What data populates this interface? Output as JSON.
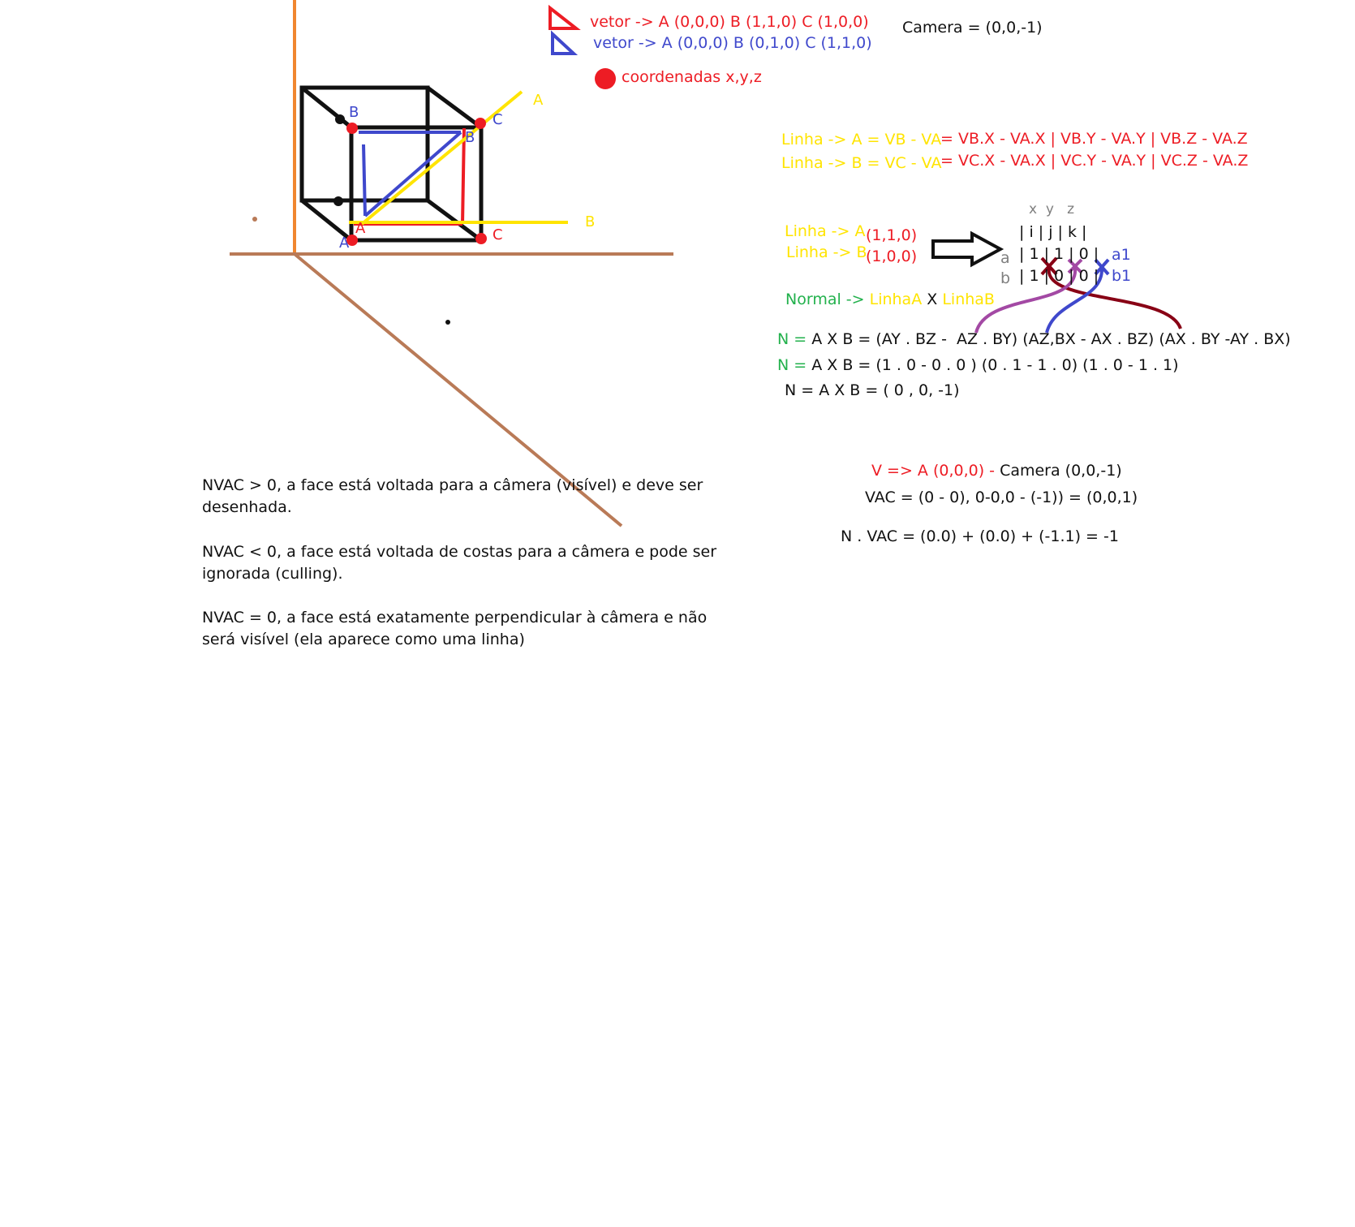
{
  "legend": {
    "red_triangle": "vetor -> A (0,0,0) B (1,1,0) C (1,0,0)",
    "blue_triangle": "vetor -> A (0,0,0) B (0,1,0) C (1,1,0)",
    "dot": "coordenadas x,y,z"
  },
  "camera": "Camera = (0,0,-1)",
  "cube_labels": {
    "blue_b": "B",
    "red_c_top": "C",
    "blue_b_inner": "B",
    "blue_a_inner": "A",
    "blue_a_bottom": "A",
    "red_c_bottom": "C",
    "yellow_a": "A",
    "yellow_b": "B"
  },
  "lines": {
    "a_left": "Linha -> A = VB - VA",
    "a_right": "= VB.X - VA.X | VB.Y - VA.Y | VB.Z - VA.Z",
    "b_left": "Linha -> B = VC - VA",
    "b_right": "= VC.X - VA.X | VC.Y - VA.Y | VC.Z - VA.Z"
  },
  "matrix": {
    "linha_a": "Linha -> A",
    "linha_b": "Linha -> B",
    "val_a": "(1,1,0)",
    "val_b": "(1,0,0)",
    "header": "x  y   z",
    "row0": "| i | j | k |",
    "row1": "| 1 | 1 | 0 |",
    "row2": "| 1 | 0 | 0 |",
    "label_a": "a",
    "label_b": "b",
    "label_a1": "a1",
    "label_b1": "b1"
  },
  "normal": {
    "word": "Normal ->",
    "linha_a": "LinhaA",
    "x": "X",
    "linha_b": "LinhaB",
    "eq1_n": "N =",
    "eq1": "A X B = (AY . BZ -  AZ . BY) (AZ,BX - AX . BZ) (AX . BY -AY . BX)",
    "eq2_n": "N =",
    "eq2": "A X B = (1 . 0 - 0 . 0 ) (0 . 1 - 1 . 0) (1 . 0 - 1 . 1)",
    "eq3": "N = A X B = ( 0 , 0, -1)"
  },
  "vac": {
    "v_red": "V => A (0,0,0) -",
    "v_black": "Camera (0,0,-1)",
    "vac_eq": "VAC = (0 - 0), 0-0,0 - (-1)) = (0,0,1)",
    "dot_eq": "N . VAC = (0.0) + (0.0) + (-1.1) = -1"
  },
  "notes": [
    "NVAC > 0, a face está voltada para a câmera (visível) e deve ser desenhada.",
    "NVAC < 0, a face está voltada de costas para a câmera e pode ser ignorada (culling).",
    "NVAC = 0, a face está exatamente perpendicular à câmera e não será visível (ela aparece como uma linha)"
  ],
  "colors": {
    "red": "#ed1c24",
    "blue": "#3f48cc",
    "yellow": "#ffe400",
    "green": "#22b14c",
    "orange_axis": "#f0862f",
    "brown_axis": "#b97a57",
    "dark_red": "#880015",
    "purple": "#a349a4"
  }
}
